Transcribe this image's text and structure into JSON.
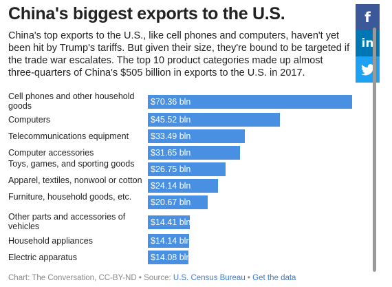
{
  "title": "China's biggest exports to the U.S.",
  "subtitle": "China's top exports to the U.S., like cell phones and computers, haven't yet been hit by Trump's tariffs. But given their size, they're bound to be targeted if the trade war escalates. The top 10 product categories made up almost three-quarters of China's $505 billion in exports to the U.S. in 2017.",
  "chart_data": {
    "type": "bar",
    "orientation": "horizontal",
    "categories": [
      "Cell phones and other household goods",
      "Computers",
      "Telecommunications equipment",
      "Computer accessories",
      "Toys, games, and sporting goods",
      "Apparel, textiles, nonwool or cotton",
      "Furniture, household goods, etc.",
      "Other parts and accessories of vehicles",
      "Household appliances",
      "Electric apparatus"
    ],
    "values": [
      70.36,
      45.52,
      33.49,
      31.65,
      26.75,
      24.14,
      20.67,
      14.41,
      14.14,
      14.08
    ],
    "value_labels": [
      "$70.36 bln",
      "$45.52 bln",
      "$33.49 bln",
      "$31.65 bln",
      "$26.75 bln",
      "$24.14 bln",
      "$20.67 bln",
      "$14.41 bln",
      "$14.14 bln",
      "$14.08 bln"
    ],
    "bar_color": "#4a90e2",
    "xlim": [
      0,
      70.36
    ]
  },
  "footer": {
    "credit": "Chart: The Conversation, CC-BY-ND",
    "separator": " • ",
    "source_prefix": "Source: ",
    "source_link": "U.S. Census Bureau",
    "data_link": "Get the data"
  },
  "share": {
    "facebook": {
      "glyph": "f",
      "icon": "facebook-icon",
      "color": "#3b5998"
    },
    "linkedin": {
      "glyph": "in",
      "icon": "linkedin-icon",
      "color": "#0077b5"
    },
    "twitter": {
      "icon": "twitter-icon",
      "color": "#1da1f2"
    }
  }
}
